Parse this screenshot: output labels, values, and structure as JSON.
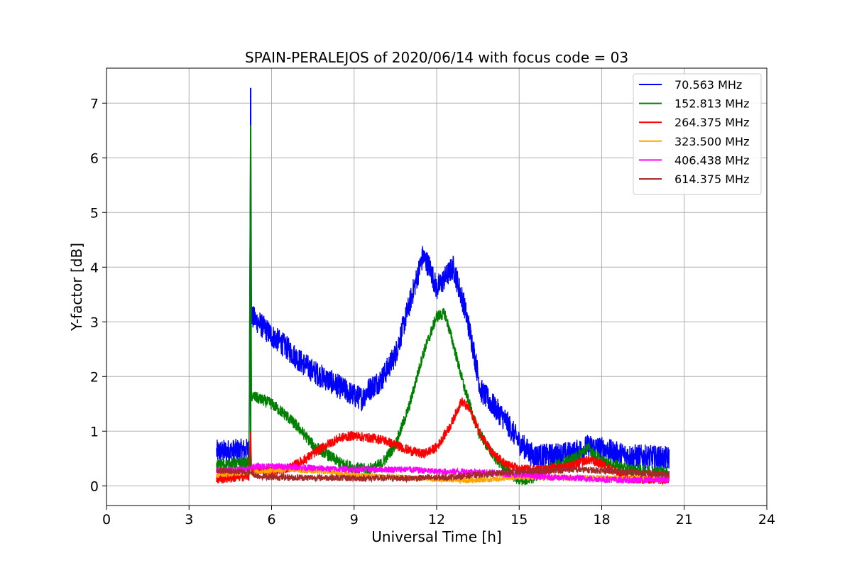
{
  "chart_data": {
    "type": "line",
    "title": "SPAIN-PERALEJOS of 2020/06/14 with focus code = 03",
    "xlabel": "Universal Time [h]",
    "ylabel": "Y-factor [dB]",
    "xlim": [
      0,
      24
    ],
    "ylim": [
      -0.36,
      7.64
    ],
    "xticks": [
      0,
      3,
      6,
      9,
      12,
      15,
      18,
      21,
      24
    ],
    "yticks": [
      0,
      1,
      2,
      3,
      4,
      5,
      6,
      7
    ],
    "grid": true,
    "legend_position": "top-right",
    "x_range_data": [
      4.0,
      20.45
    ],
    "noise": [
      0.45,
      0.22,
      0.18,
      0.1,
      0.12,
      0.12
    ],
    "series": [
      {
        "name": " 70.563 MHz",
        "color": "#0000ff",
        "points": [
          [
            4.0,
            0.62
          ],
          [
            5.18,
            0.65
          ],
          [
            5.24,
            7.28
          ],
          [
            5.27,
            3.1
          ],
          [
            5.5,
            3.0
          ],
          [
            6.0,
            2.75
          ],
          [
            6.5,
            2.55
          ],
          [
            7.0,
            2.3
          ],
          [
            7.5,
            2.1
          ],
          [
            8.0,
            1.95
          ],
          [
            8.5,
            1.8
          ],
          [
            9.0,
            1.65
          ],
          [
            9.3,
            1.6
          ],
          [
            9.5,
            1.75
          ],
          [
            10.0,
            1.95
          ],
          [
            10.5,
            2.4
          ],
          [
            11.0,
            3.3
          ],
          [
            11.5,
            4.2
          ],
          [
            11.75,
            4.0
          ],
          [
            12.0,
            3.6
          ],
          [
            12.3,
            3.8
          ],
          [
            12.6,
            4.0
          ],
          [
            13.0,
            3.3
          ],
          [
            13.3,
            2.6
          ],
          [
            13.6,
            1.75
          ],
          [
            14.0,
            1.5
          ],
          [
            14.5,
            1.2
          ],
          [
            15.0,
            0.8
          ],
          [
            15.5,
            0.55
          ],
          [
            16.0,
            0.55
          ],
          [
            17.0,
            0.6
          ],
          [
            17.5,
            0.72
          ],
          [
            18.0,
            0.68
          ],
          [
            18.5,
            0.6
          ],
          [
            19.0,
            0.55
          ],
          [
            20.45,
            0.5
          ]
        ]
      },
      {
        "name": "152.813 MHz",
        "color": "#008000",
        "points": [
          [
            4.0,
            0.38
          ],
          [
            5.18,
            0.42
          ],
          [
            5.24,
            6.6
          ],
          [
            5.27,
            1.65
          ],
          [
            5.5,
            1.6
          ],
          [
            6.0,
            1.5
          ],
          [
            6.5,
            1.3
          ],
          [
            7.0,
            1.05
          ],
          [
            7.5,
            0.75
          ],
          [
            8.0,
            0.58
          ],
          [
            8.5,
            0.42
          ],
          [
            9.0,
            0.33
          ],
          [
            9.5,
            0.3
          ],
          [
            10.0,
            0.4
          ],
          [
            10.5,
            0.75
          ],
          [
            11.0,
            1.45
          ],
          [
            11.5,
            2.4
          ],
          [
            12.0,
            3.1
          ],
          [
            12.3,
            3.15
          ],
          [
            12.6,
            2.6
          ],
          [
            13.0,
            1.8
          ],
          [
            13.5,
            1.0
          ],
          [
            14.0,
            0.6
          ],
          [
            14.5,
            0.3
          ],
          [
            15.0,
            0.1
          ],
          [
            15.5,
            0.15
          ],
          [
            16.0,
            0.3
          ],
          [
            17.0,
            0.5
          ],
          [
            17.5,
            0.7
          ],
          [
            18.0,
            0.45
          ],
          [
            19.0,
            0.3
          ],
          [
            20.45,
            0.25
          ]
        ]
      },
      {
        "name": "264.375 MHz",
        "color": "#ff0000",
        "points": [
          [
            4.0,
            0.12
          ],
          [
            5.18,
            0.18
          ],
          [
            5.24,
            1.02
          ],
          [
            5.27,
            0.28
          ],
          [
            6.0,
            0.28
          ],
          [
            6.5,
            0.3
          ],
          [
            7.0,
            0.42
          ],
          [
            7.5,
            0.58
          ],
          [
            8.0,
            0.75
          ],
          [
            8.5,
            0.88
          ],
          [
            9.0,
            0.92
          ],
          [
            9.5,
            0.88
          ],
          [
            10.0,
            0.85
          ],
          [
            10.5,
            0.75
          ],
          [
            11.0,
            0.65
          ],
          [
            11.5,
            0.58
          ],
          [
            12.0,
            0.7
          ],
          [
            12.5,
            1.1
          ],
          [
            12.9,
            1.55
          ],
          [
            13.2,
            1.4
          ],
          [
            13.5,
            1.05
          ],
          [
            14.0,
            0.6
          ],
          [
            14.5,
            0.4
          ],
          [
            15.0,
            0.3
          ],
          [
            16.0,
            0.3
          ],
          [
            17.0,
            0.38
          ],
          [
            17.5,
            0.48
          ],
          [
            18.0,
            0.4
          ],
          [
            18.5,
            0.25
          ],
          [
            19.0,
            0.12
          ],
          [
            20.0,
            0.12
          ],
          [
            20.45,
            0.12
          ]
        ]
      },
      {
        "name": "323.500 MHz",
        "color": "#ffa500",
        "points": [
          [
            4.0,
            0.2
          ],
          [
            5.3,
            0.25
          ],
          [
            6.5,
            0.3
          ],
          [
            8.0,
            0.26
          ],
          [
            9.0,
            0.2
          ],
          [
            10.0,
            0.17
          ],
          [
            12.0,
            0.12
          ],
          [
            13.0,
            0.1
          ],
          [
            14.0,
            0.12
          ],
          [
            15.0,
            0.15
          ],
          [
            16.0,
            0.15
          ],
          [
            18.0,
            0.15
          ],
          [
            20.45,
            0.12
          ]
        ]
      },
      {
        "name": "406.438 MHz",
        "color": "#ff00ff",
        "points": [
          [
            4.0,
            0.28
          ],
          [
            5.2,
            0.3
          ],
          [
            5.27,
            0.35
          ],
          [
            6.0,
            0.36
          ],
          [
            7.0,
            0.34
          ],
          [
            8.0,
            0.31
          ],
          [
            9.0,
            0.3
          ],
          [
            10.0,
            0.3
          ],
          [
            11.0,
            0.3
          ],
          [
            12.0,
            0.26
          ],
          [
            13.0,
            0.26
          ],
          [
            14.0,
            0.24
          ],
          [
            15.0,
            0.2
          ],
          [
            16.0,
            0.16
          ],
          [
            17.0,
            0.14
          ],
          [
            18.0,
            0.12
          ],
          [
            19.0,
            0.1
          ],
          [
            20.45,
            0.12
          ]
        ]
      },
      {
        "name": "614.375 MHz",
        "color": "#a52a2a",
        "points": [
          [
            4.0,
            0.28
          ],
          [
            5.2,
            0.25
          ],
          [
            5.5,
            0.18
          ],
          [
            6.0,
            0.16
          ],
          [
            7.0,
            0.15
          ],
          [
            8.0,
            0.15
          ],
          [
            9.0,
            0.14
          ],
          [
            10.0,
            0.14
          ],
          [
            11.0,
            0.14
          ],
          [
            12.0,
            0.15
          ],
          [
            13.0,
            0.18
          ],
          [
            14.0,
            0.22
          ],
          [
            15.0,
            0.26
          ],
          [
            16.0,
            0.28
          ],
          [
            17.0,
            0.3
          ],
          [
            18.0,
            0.28
          ],
          [
            19.0,
            0.25
          ],
          [
            20.0,
            0.22
          ],
          [
            20.45,
            0.2
          ]
        ]
      }
    ]
  }
}
